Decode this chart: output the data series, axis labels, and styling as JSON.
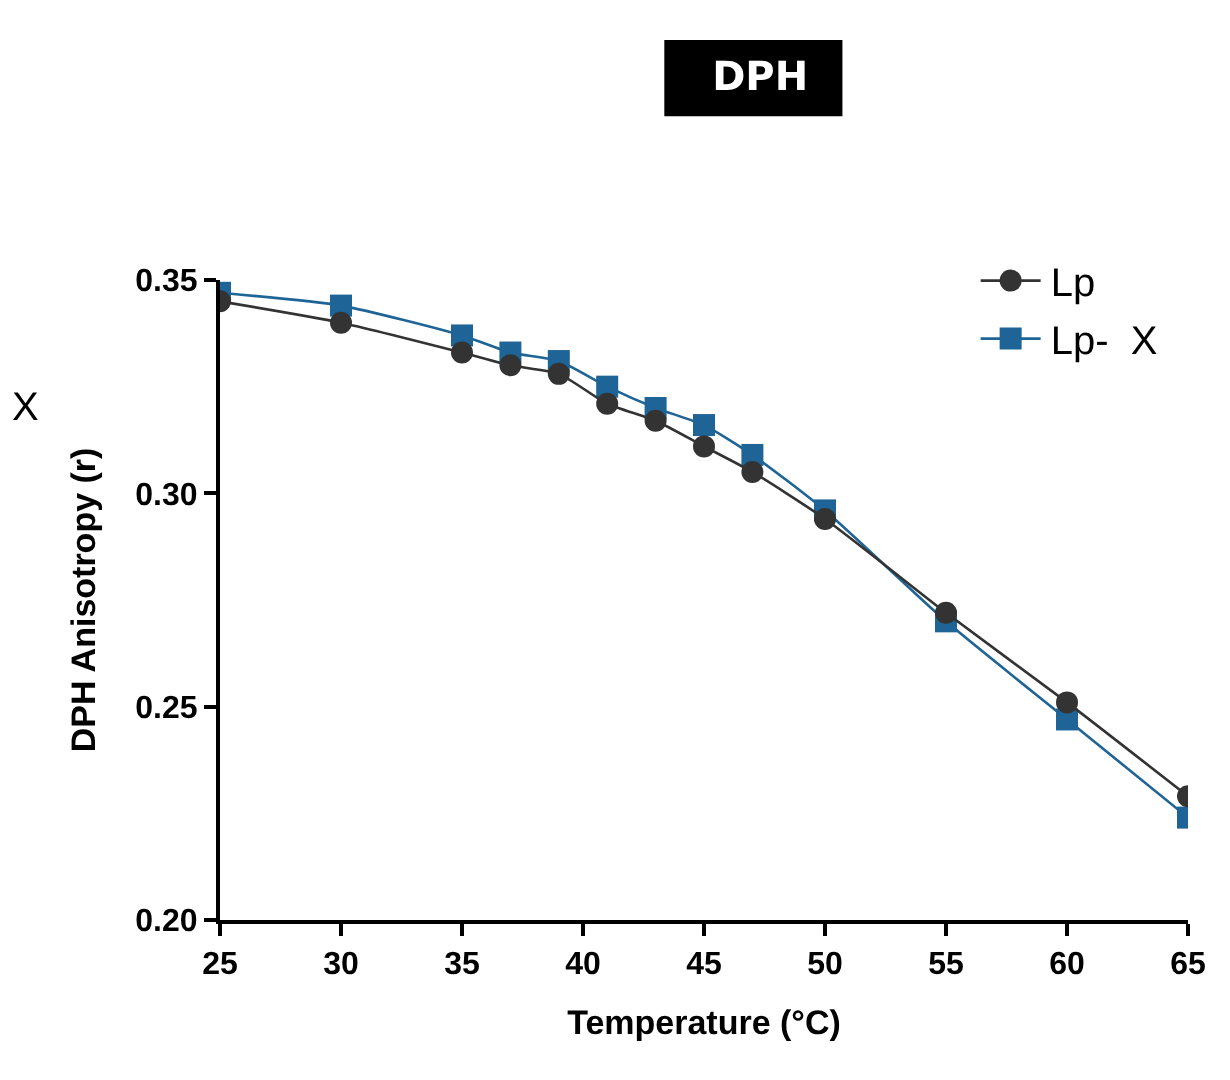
{
  "chart_data": {
    "type": "line",
    "title": "DPH",
    "xlabel": "Temperature (°C)",
    "ylabel": "DPH Anisotropy (r)",
    "x": [
      25,
      30,
      35,
      37,
      39,
      41,
      43,
      45,
      47,
      50,
      55,
      60,
      65
    ],
    "series": [
      {
        "name": "Lp",
        "color": "#333333",
        "marker": "circle",
        "values": [
          0.345,
          0.34,
          0.333,
          0.33,
          0.328,
          0.321,
          0.317,
          0.311,
          0.305,
          0.294,
          0.272,
          0.251,
          0.229
        ]
      },
      {
        "name": "Lp-  X",
        "color": "#1f6496",
        "marker": "square",
        "values": [
          0.347,
          0.344,
          0.337,
          0.333,
          0.331,
          0.325,
          0.32,
          0.316,
          0.309,
          0.296,
          0.27,
          0.247,
          0.224
        ]
      }
    ],
    "xlim": [
      25,
      65
    ],
    "xticks": [
      25,
      30,
      35,
      40,
      45,
      50,
      55,
      60,
      65
    ],
    "ylim": [
      0.2,
      0.35
    ],
    "yticks": [
      {
        "value": 0.2,
        "label": "0.20"
      },
      {
        "value": 0.25,
        "label": "0.25"
      },
      {
        "value": 0.3,
        "label": "0.30"
      },
      {
        "value": 0.35,
        "label": "0.35"
      }
    ],
    "legend": "top right",
    "line_style": "solid",
    "annotations": [
      "X"
    ]
  }
}
